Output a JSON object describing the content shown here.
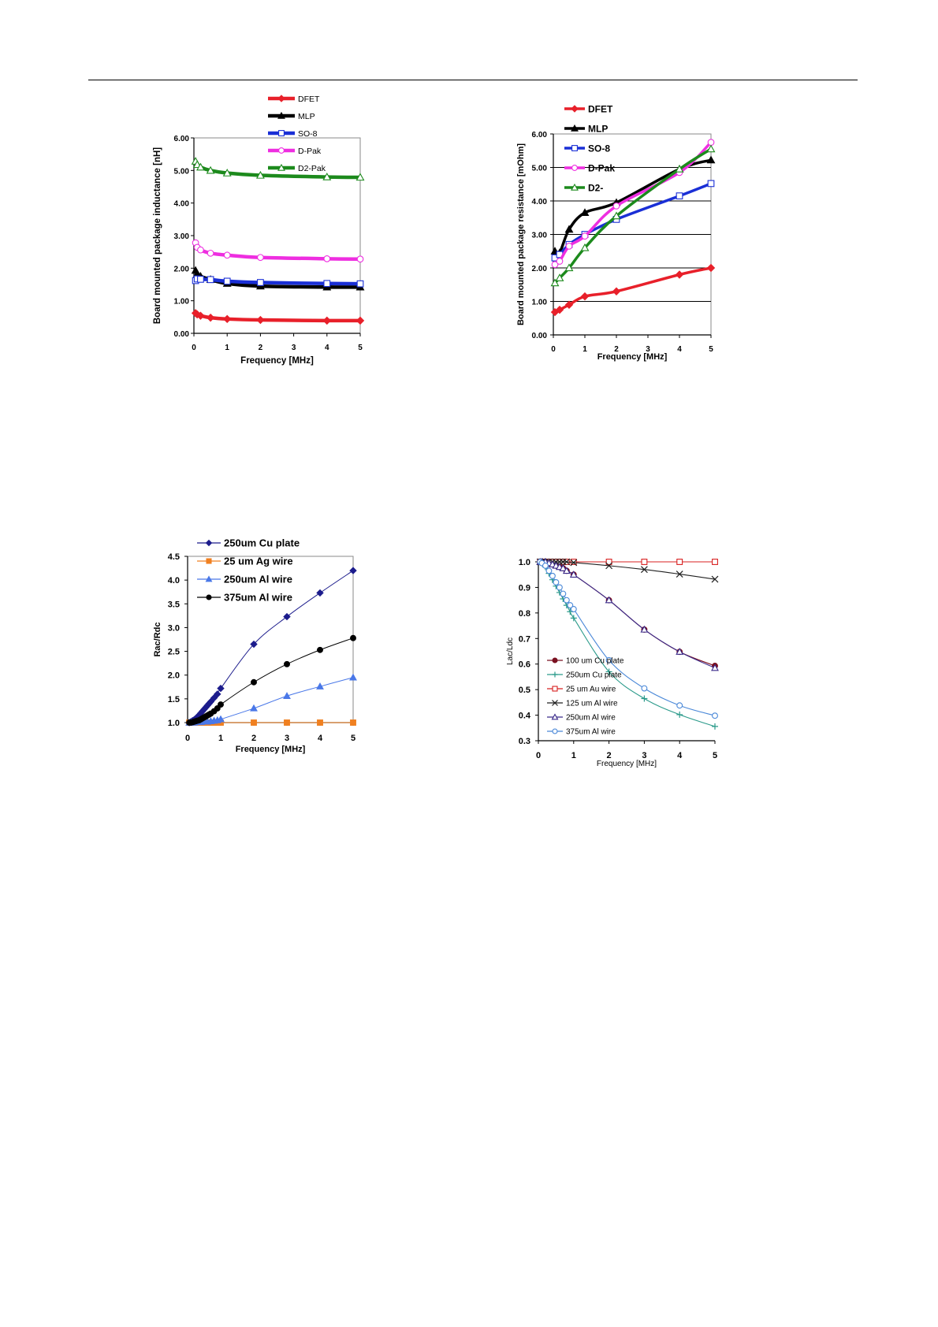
{
  "chart_data": [
    {
      "type": "line",
      "title": "",
      "xlabel": "Frequency [MHz]",
      "ylabel": "Board mounted package inductance [nH]",
      "xlim": [
        0,
        5
      ],
      "ylim": [
        0,
        6
      ],
      "x_ticks": [
        "0",
        "1",
        "2",
        "3",
        "4",
        "5"
      ],
      "y_ticks": [
        "0.00",
        "1.00",
        "2.00",
        "3.00",
        "4.00",
        "5.00",
        "6.00"
      ],
      "grid": "none",
      "legend_position": "top",
      "series": [
        {
          "name": "DFET",
          "color": "#e8202a",
          "marker": "diamond-filled",
          "x": [
            0.05,
            0.1,
            0.2,
            0.5,
            1,
            2,
            4,
            5
          ],
          "y": [
            0.62,
            0.58,
            0.54,
            0.48,
            0.44,
            0.41,
            0.39,
            0.39
          ]
        },
        {
          "name": "MLP",
          "color": "#000000",
          "marker": "triangle-filled",
          "x": [
            0.05,
            0.1,
            0.2,
            0.5,
            1,
            2,
            4,
            5
          ],
          "y": [
            1.93,
            1.82,
            1.75,
            1.65,
            1.53,
            1.45,
            1.42,
            1.42
          ]
        },
        {
          "name": "SO-8",
          "color": "#1a2fd6",
          "marker": "square-open",
          "x": [
            0.05,
            0.1,
            0.2,
            0.5,
            1,
            2,
            4,
            5
          ],
          "y": [
            1.62,
            1.67,
            1.66,
            1.65,
            1.6,
            1.56,
            1.53,
            1.52
          ]
        },
        {
          "name": "D-Pak",
          "color": "#ee2ee0",
          "marker": "circle-open",
          "x": [
            0.05,
            0.1,
            0.2,
            0.5,
            1,
            2,
            4,
            5
          ],
          "y": [
            2.78,
            2.64,
            2.56,
            2.46,
            2.4,
            2.33,
            2.29,
            2.28
          ]
        },
        {
          "name": "D2-Pak",
          "color": "#1c8a1c",
          "marker": "triangle-open",
          "x": [
            0.05,
            0.1,
            0.2,
            0.5,
            1,
            2,
            4,
            5
          ],
          "y": [
            5.28,
            5.18,
            5.1,
            5.0,
            4.92,
            4.85,
            4.8,
            4.79
          ]
        }
      ]
    },
    {
      "type": "line",
      "title": "",
      "xlabel": "Frequency [MHz]",
      "ylabel": "Board mounted package resistance [mOhm]",
      "xlim": [
        0,
        5
      ],
      "ylim": [
        0,
        6
      ],
      "x_ticks": [
        "0",
        "1",
        "2",
        "3",
        "4",
        "5"
      ],
      "y_ticks": [
        "0.00",
        "1.00",
        "2.00",
        "3.00",
        "4.00",
        "5.00",
        "6.00"
      ],
      "grid": "horizontal",
      "legend_position": "top-left inside",
      "series": [
        {
          "name": "DFET",
          "color": "#e8202a",
          "marker": "diamond-filled",
          "x": [
            0.05,
            0.2,
            0.5,
            1,
            2,
            4,
            5
          ],
          "y": [
            0.68,
            0.75,
            0.9,
            1.15,
            1.3,
            1.8,
            2.0
          ]
        },
        {
          "name": "MLP",
          "color": "#000000",
          "marker": "triangle-filled",
          "x": [
            0.05,
            0.2,
            0.5,
            1,
            2,
            4,
            5
          ],
          "y": [
            2.5,
            2.45,
            3.15,
            3.65,
            3.95,
            4.95,
            5.22
          ]
        },
        {
          "name": "SO-8",
          "color": "#1a2fd6",
          "marker": "square-open",
          "x": [
            0.05,
            0.2,
            0.5,
            1,
            2,
            4,
            5
          ],
          "y": [
            2.3,
            2.4,
            2.7,
            3.0,
            3.45,
            4.15,
            4.52
          ]
        },
        {
          "name": "D-Pak",
          "color": "#ee2ee0",
          "marker": "circle-open",
          "x": [
            0.05,
            0.2,
            0.5,
            1,
            2,
            4,
            5
          ],
          "y": [
            2.1,
            2.2,
            2.65,
            2.95,
            3.85,
            4.85,
            5.75
          ]
        },
        {
          "name": "D2-",
          "color": "#1c8a1c",
          "marker": "triangle-open",
          "x": [
            0.05,
            0.2,
            0.5,
            1,
            2,
            4,
            5
          ],
          "y": [
            1.55,
            1.7,
            2.0,
            2.6,
            3.55,
            4.95,
            5.55
          ]
        }
      ]
    },
    {
      "type": "line",
      "title": "",
      "xlabel": "Frequency [MHz]",
      "ylabel": "Rac/Rdc",
      "xlim": [
        0,
        5
      ],
      "ylim": [
        1.0,
        4.5
      ],
      "x_ticks": [
        "0",
        "1",
        "2",
        "3",
        "4",
        "5"
      ],
      "y_ticks": [
        "1.0",
        "1.5",
        "2.0",
        "2.5",
        "3.0",
        "3.5",
        "4.0",
        "4.5"
      ],
      "grid": "none",
      "legend_position": "top",
      "series": [
        {
          "name": "250um Cu plate",
          "color": "#1c1c8c",
          "marker": "diamond-filled",
          "x": [
            0.05,
            0.1,
            0.15,
            0.2,
            0.25,
            0.3,
            0.35,
            0.4,
            0.45,
            0.5,
            0.55,
            0.6,
            0.65,
            0.7,
            0.8,
            0.9,
            1,
            2,
            3,
            4,
            5
          ],
          "y": [
            1.0,
            1.02,
            1.04,
            1.06,
            1.09,
            1.12,
            1.16,
            1.2,
            1.24,
            1.28,
            1.32,
            1.36,
            1.4,
            1.44,
            1.52,
            1.6,
            1.72,
            2.65,
            3.23,
            3.73,
            4.2
          ]
        },
        {
          "name": "25 um Ag wire",
          "color": "#f08020",
          "marker": "square-filled",
          "x": [
            0.05,
            0.1,
            0.2,
            0.3,
            0.4,
            0.5,
            0.6,
            0.7,
            0.8,
            0.9,
            1,
            2,
            3,
            4,
            5
          ],
          "y": [
            1.0,
            1.0,
            1.0,
            1.0,
            1.0,
            1.0,
            1.0,
            1.0,
            1.0,
            1.0,
            1.0,
            1.0,
            1.0,
            1.0,
            1.0
          ]
        },
        {
          "name": "250um Al wire",
          "color": "#4a78e8",
          "marker": "triangle-filled",
          "x": [
            0.05,
            0.1,
            0.2,
            0.3,
            0.4,
            0.5,
            0.6,
            0.7,
            0.8,
            0.9,
            1,
            2,
            3,
            4,
            5
          ],
          "y": [
            1.0,
            1.0,
            1.0,
            1.01,
            1.01,
            1.02,
            1.02,
            1.03,
            1.04,
            1.05,
            1.07,
            1.3,
            1.56,
            1.76,
            1.95
          ]
        },
        {
          "name": "375um Al wire",
          "color": "#000000",
          "marker": "circle-filled",
          "x": [
            0.05,
            0.1,
            0.15,
            0.2,
            0.25,
            0.3,
            0.35,
            0.4,
            0.45,
            0.5,
            0.55,
            0.6,
            0.65,
            0.7,
            0.8,
            0.9,
            1,
            2,
            3,
            4,
            5
          ],
          "y": [
            1.0,
            1.0,
            1.01,
            1.02,
            1.03,
            1.04,
            1.05,
            1.07,
            1.09,
            1.11,
            1.13,
            1.15,
            1.17,
            1.19,
            1.24,
            1.3,
            1.38,
            1.85,
            2.23,
            2.53,
            2.78
          ]
        }
      ]
    },
    {
      "type": "line",
      "title": "",
      "xlabel": "Frequency [MHz]",
      "ylabel": "Lac/Ldc",
      "xlim": [
        0,
        5
      ],
      "ylim": [
        0.3,
        1.0
      ],
      "x_ticks": [
        "0",
        "1",
        "2",
        "3",
        "4",
        "5"
      ],
      "y_ticks": [
        "0.3",
        "0.4",
        "0.5",
        "0.6",
        "0.7",
        "0.8",
        "0.9",
        "1.0"
      ],
      "grid": "none",
      "legend_position": "bottom-left inside",
      "series": [
        {
          "name": "100 um Cu plate",
          "color": "#7a1020",
          "marker": "circle-filled",
          "x": [
            0.05,
            0.1,
            0.2,
            0.3,
            0.4,
            0.5,
            0.6,
            0.7,
            0.8,
            1,
            2,
            3,
            4,
            5
          ],
          "y": [
            1.0,
            1.0,
            1.0,
            0.995,
            0.99,
            0.985,
            0.98,
            0.975,
            0.965,
            0.95,
            0.85,
            0.735,
            0.648,
            0.593
          ]
        },
        {
          "name": "250um Cu plate",
          "color": "#2a9a8a",
          "marker": "plus",
          "x": [
            0.05,
            0.1,
            0.2,
            0.3,
            0.4,
            0.5,
            0.6,
            0.7,
            0.8,
            0.9,
            1,
            2,
            3,
            4,
            5
          ],
          "y": [
            1.0,
            0.995,
            0.98,
            0.955,
            0.93,
            0.905,
            0.88,
            0.855,
            0.83,
            0.805,
            0.78,
            0.57,
            0.465,
            0.402,
            0.356
          ]
        },
        {
          "name": "25 um Au wire",
          "color": "#d82020",
          "marker": "square-open",
          "x": [
            0.05,
            0.1,
            0.2,
            0.3,
            0.4,
            0.5,
            0.6,
            0.7,
            0.8,
            1,
            2,
            3,
            4,
            5
          ],
          "y": [
            1.0,
            1.0,
            1.0,
            1.0,
            1.0,
            1.0,
            1.0,
            1.0,
            1.0,
            1.0,
            1.0,
            1.0,
            1.0,
            1.0
          ]
        },
        {
          "name": "125 um Al wire",
          "color": "#202020",
          "marker": "x",
          "x": [
            0.05,
            0.1,
            0.2,
            0.3,
            0.4,
            0.5,
            0.6,
            0.7,
            0.8,
            1,
            2,
            3,
            4,
            5
          ],
          "y": [
            1.0,
            1.0,
            1.0,
            1.0,
            1.0,
            1.0,
            1.0,
            1.0,
            1.0,
            0.997,
            0.985,
            0.97,
            0.952,
            0.932
          ]
        },
        {
          "name": "250um Al wire",
          "color": "#3a2a8a",
          "marker": "triangle-open",
          "x": [
            0.05,
            0.1,
            0.2,
            0.3,
            0.4,
            0.5,
            0.6,
            0.7,
            0.8,
            1,
            2,
            3,
            4,
            5
          ],
          "y": [
            1.0,
            1.0,
            1.0,
            0.995,
            0.99,
            0.985,
            0.98,
            0.975,
            0.965,
            0.95,
            0.85,
            0.735,
            0.648,
            0.585
          ]
        },
        {
          "name": "375um Al wire",
          "color": "#4a88d8",
          "marker": "circle-open",
          "x": [
            0.05,
            0.1,
            0.2,
            0.3,
            0.4,
            0.5,
            0.6,
            0.7,
            0.8,
            0.9,
            1,
            2,
            3,
            4,
            5
          ],
          "y": [
            1.0,
            0.995,
            0.985,
            0.965,
            0.945,
            0.92,
            0.9,
            0.875,
            0.85,
            0.83,
            0.815,
            0.615,
            0.505,
            0.438,
            0.398
          ]
        }
      ]
    }
  ]
}
